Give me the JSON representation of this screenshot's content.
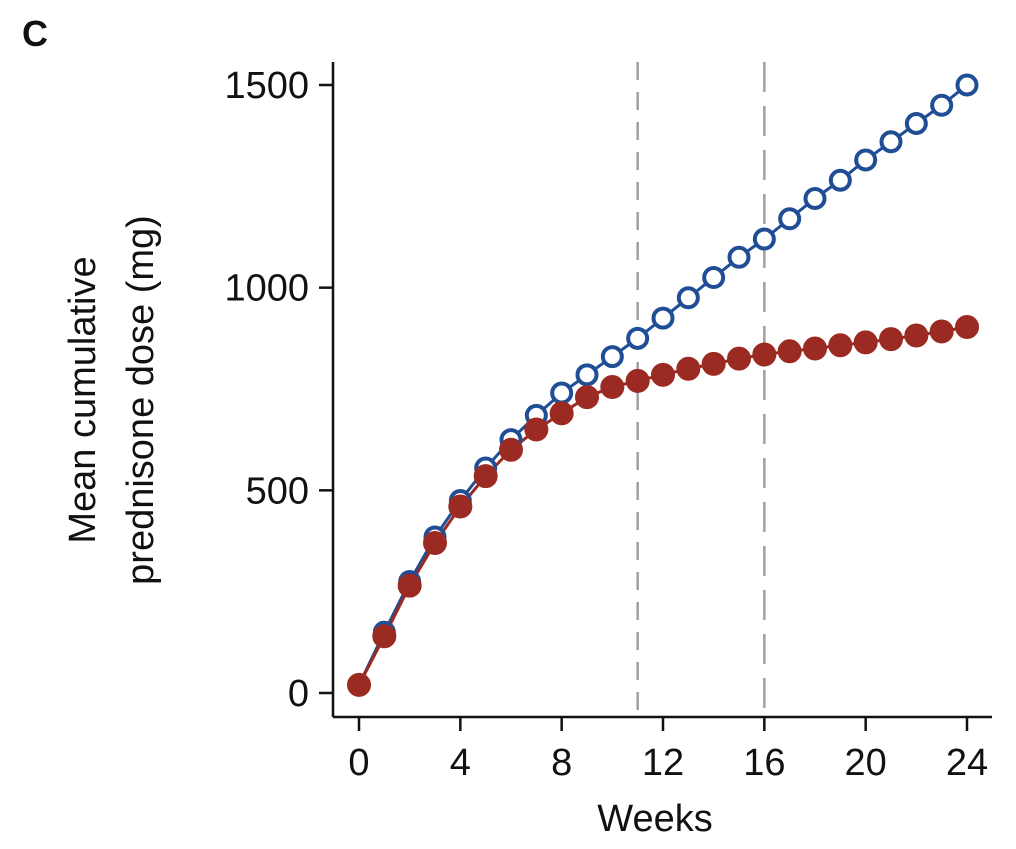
{
  "panel_label": "C",
  "chart_data": {
    "type": "line",
    "title": "",
    "xlabel": "Weeks",
    "ylabel_lines": [
      "Mean cumulative",
      "prednisone dose (mg)"
    ],
    "xlim": [
      0,
      24
    ],
    "ylim": [
      0,
      1500
    ],
    "x_ticks": [
      0,
      4,
      8,
      12,
      16,
      20,
      24
    ],
    "x_tick_labels": [
      "0",
      "4",
      "8",
      "12",
      "16",
      "20",
      "24"
    ],
    "y_ticks": [
      0,
      500,
      1000,
      1500
    ],
    "y_tick_labels": [
      "0",
      "500",
      "1000",
      "1500"
    ],
    "grid": false,
    "legend": "none",
    "reference_lines_x": [
      11,
      16
    ],
    "x": [
      0,
      1,
      2,
      3,
      4,
      5,
      6,
      7,
      8,
      9,
      10,
      11,
      12,
      13,
      14,
      15,
      16,
      17,
      18,
      19,
      20,
      21,
      22,
      23,
      24
    ],
    "series": [
      {
        "marker": "open-circle",
        "color": "#1f4e96",
        "values": [
          20,
          150,
          275,
          385,
          475,
          555,
          625,
          685,
          740,
          785,
          830,
          875,
          925,
          975,
          1025,
          1075,
          1120,
          1170,
          1220,
          1265,
          1315,
          1360,
          1405,
          1450,
          1500
        ]
      },
      {
        "marker": "filled-circle",
        "color": "#9b2a22",
        "values": [
          20,
          140,
          265,
          370,
          460,
          535,
          600,
          650,
          690,
          730,
          755,
          770,
          785,
          800,
          812,
          825,
          835,
          843,
          850,
          858,
          865,
          873,
          882,
          892,
          903
        ]
      }
    ]
  }
}
